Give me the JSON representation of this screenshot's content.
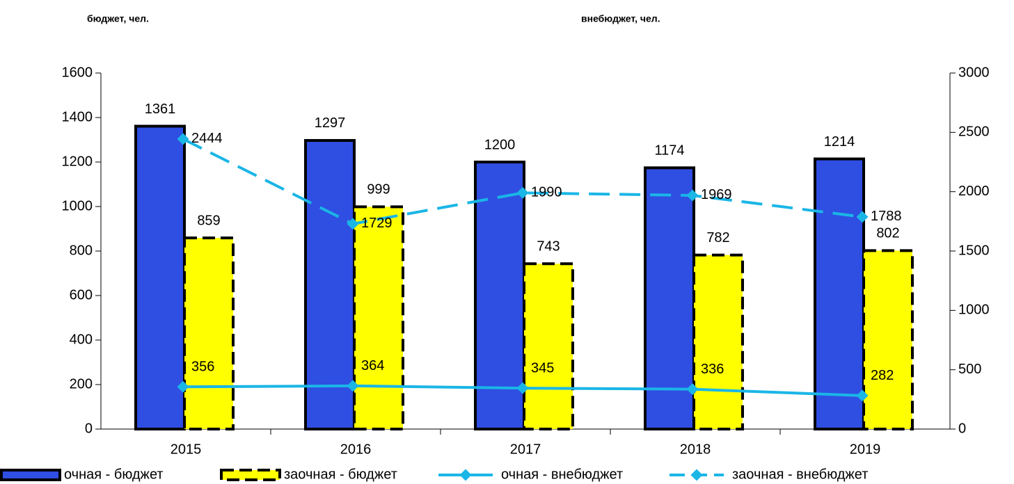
{
  "chart_data": {
    "type": "bar",
    "y_axis_title": "бюджет, чел.",
    "y2_axis_title": "внебюджет, чел.",
    "categories": [
      "2015",
      "2016",
      "2017",
      "2018",
      "2019"
    ],
    "series": [
      {
        "name": "очная - бюджет",
        "type": "bar",
        "color": "#2f4ee2",
        "values": [
          1361,
          1297,
          1200,
          1174,
          1214
        ]
      },
      {
        "name": "заочная - бюджет",
        "type": "bar",
        "color": "#ffff00",
        "dashed": true,
        "values": [
          859,
          999,
          743,
          782,
          802
        ]
      },
      {
        "name": "очная - внебюджет",
        "type": "line",
        "axis": "y2",
        "color": "#1ab6e6",
        "values": [
          356,
          364,
          345,
          336,
          282
        ]
      },
      {
        "name": "заочная - внебюджет",
        "type": "line",
        "axis": "y2",
        "color": "#1ab6e6",
        "dashed": true,
        "values": [
          2444,
          1729,
          1990,
          1969,
          1788
        ]
      }
    ],
    "ylim": [
      0,
      1600
    ],
    "yticks": [
      0,
      200,
      400,
      600,
      800,
      1000,
      1200,
      1400,
      1600
    ],
    "y2lim": [
      0,
      3000
    ],
    "y2ticks": [
      0,
      500,
      1000,
      1500,
      2000,
      2500,
      3000
    ],
    "legend": "bottom"
  }
}
